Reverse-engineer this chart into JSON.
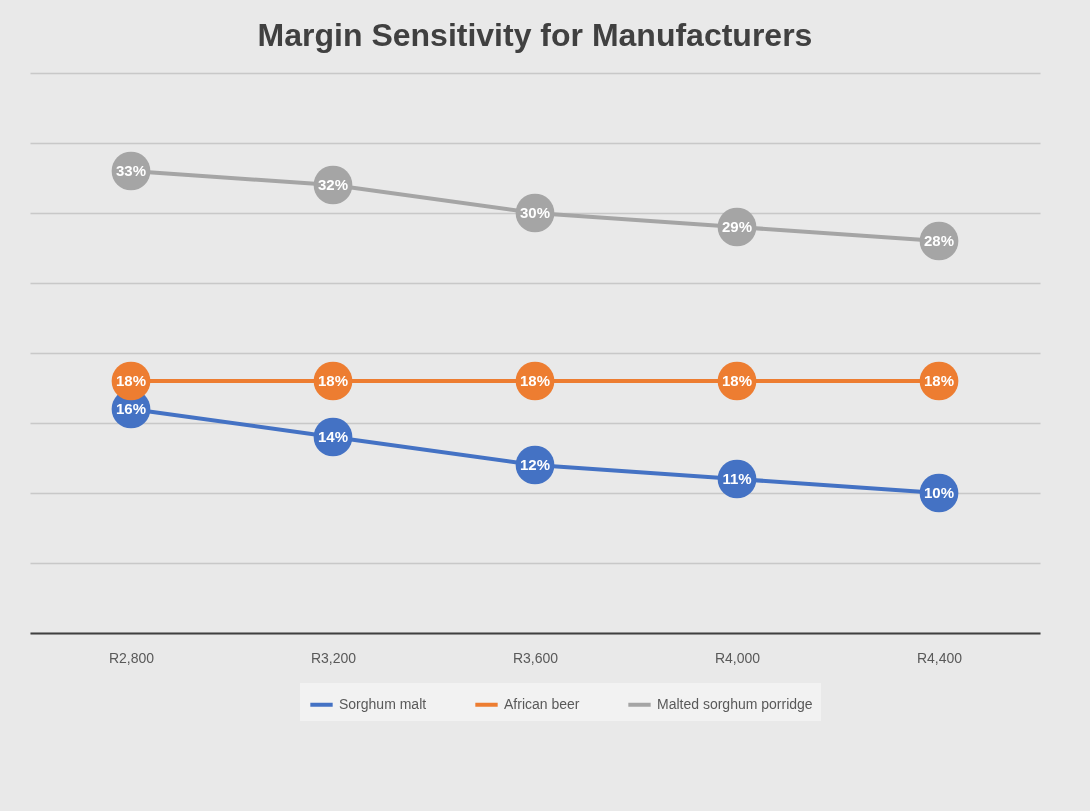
{
  "chart_data": {
    "type": "line",
    "title": "Margin Sensitivity for Manufacturers",
    "categories": [
      "R2,800",
      "R3,200",
      "R3,600",
      "R4,000",
      "R4,400"
    ],
    "series": [
      {
        "name": "Sorghum malt",
        "color": "#4472c4",
        "values": [
          16,
          14,
          12,
          11,
          10
        ],
        "value_labels": [
          "16%",
          "14%",
          "12%",
          "11%",
          "10%"
        ]
      },
      {
        "name": "African beer",
        "color": "#ed7d31",
        "values": [
          18,
          18,
          18,
          18,
          18
        ],
        "value_labels": [
          "18%",
          "18%",
          "18%",
          "18%",
          "18%"
        ]
      },
      {
        "name": "Malted sorghum porridge",
        "color": "#a5a5a5",
        "values": [
          33,
          32,
          30,
          29,
          28
        ],
        "value_labels": [
          "33%",
          "32%",
          "30%",
          "29%",
          "28%"
        ]
      }
    ],
    "ylim": [
      0,
      40
    ],
    "yticks": [
      {
        "value": 0,
        "label": null
      },
      {
        "value": 5,
        "label": null
      },
      {
        "value": 10,
        "label": null
      },
      {
        "value": 15,
        "label": null
      },
      {
        "value": 20,
        "label": null
      },
      {
        "value": 25,
        "label": null
      },
      {
        "value": 30,
        "label": null
      },
      {
        "value": 35,
        "label": null
      },
      {
        "value": 40,
        "label": null
      }
    ],
    "tick_labels": "x",
    "grid": "y",
    "legend": "bottom",
    "marker": "circle",
    "line_style": "solid"
  }
}
